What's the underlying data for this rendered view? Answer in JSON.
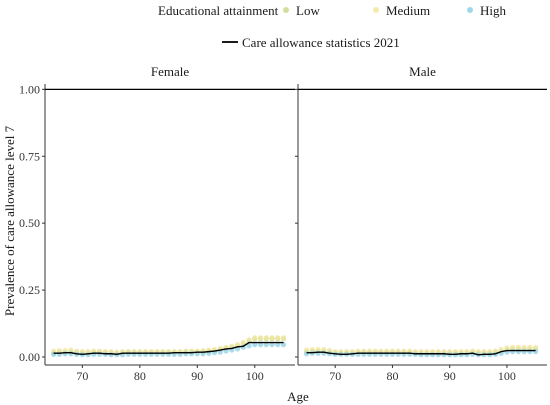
{
  "chart_data": {
    "type": "scatter",
    "legend": {
      "title": "Educational attainment",
      "items": [
        {
          "label": "Low",
          "color": "#c8d98a"
        },
        {
          "label": "Medium",
          "color": "#f2e6a0"
        },
        {
          "label": "High",
          "color": "#8ed0e6"
        }
      ],
      "line_label": "Care allowance statistics 2021",
      "line_color": "#000000",
      "placement": "top"
    },
    "xlabel": "Age",
    "ylabel": "Prevalence of care allowance level 7",
    "xlim": [
      63.5,
      107
    ],
    "ylim": [
      -0.03,
      1.02
    ],
    "xticks": [
      70,
      80,
      90,
      100
    ],
    "yticks": [
      0.0,
      0.25,
      0.5,
      0.75,
      1.0
    ],
    "ytick_labels": [
      "0.00",
      "0.25",
      "0.50",
      "0.75",
      "1.00"
    ],
    "grid": false,
    "panels": [
      {
        "label": "Female",
        "hline": 1.0,
        "series": [
          {
            "name": "Low",
            "x": [
              65,
              66,
              67,
              68,
              69,
              70,
              71,
              72,
              73,
              74,
              75,
              76,
              77,
              78,
              79,
              80,
              81,
              82,
              83,
              84,
              85,
              86,
              87,
              88,
              89,
              90,
              91,
              92,
              93,
              94,
              95,
              96,
              97,
              98,
              99,
              100,
              101,
              102,
              103,
              104,
              105
            ],
            "y": [
              0.016,
              0.018,
              0.018,
              0.02,
              0.018,
              0.016,
              0.016,
              0.018,
              0.018,
              0.018,
              0.016,
              0.014,
              0.016,
              0.018,
              0.018,
              0.018,
              0.018,
              0.018,
              0.018,
              0.018,
              0.018,
              0.018,
              0.018,
              0.02,
              0.02,
              0.02,
              0.02,
              0.022,
              0.024,
              0.028,
              0.032,
              0.036,
              0.042,
              0.05,
              0.06,
              0.068,
              0.068,
              0.068,
              0.068,
              0.068,
              0.068
            ]
          },
          {
            "name": "Medium",
            "x": [
              65,
              66,
              67,
              68,
              69,
              70,
              71,
              72,
              73,
              74,
              75,
              76,
              77,
              78,
              79,
              80,
              81,
              82,
              83,
              84,
              85,
              86,
              87,
              88,
              89,
              90,
              91,
              92,
              93,
              94,
              95,
              96,
              97,
              98,
              99,
              100,
              101,
              102,
              103,
              104,
              105
            ],
            "y": [
              0.022,
              0.024,
              0.024,
              0.026,
              0.022,
              0.02,
              0.02,
              0.022,
              0.022,
              0.02,
              0.02,
              0.018,
              0.02,
              0.02,
              0.02,
              0.02,
              0.02,
              0.02,
              0.02,
              0.02,
              0.02,
              0.02,
              0.02,
              0.022,
              0.022,
              0.022,
              0.024,
              0.026,
              0.028,
              0.032,
              0.036,
              0.04,
              0.046,
              0.054,
              0.064,
              0.072,
              0.072,
              0.072,
              0.072,
              0.072,
              0.072
            ]
          },
          {
            "name": "High",
            "x": [
              65,
              66,
              67,
              68,
              69,
              70,
              71,
              72,
              73,
              74,
              75,
              76,
              77,
              78,
              79,
              80,
              81,
              82,
              83,
              84,
              85,
              86,
              87,
              88,
              89,
              90,
              91,
              92,
              93,
              94,
              95,
              96,
              97,
              98,
              99,
              100,
              101,
              102,
              103,
              104,
              105
            ],
            "y": [
              0.01,
              0.01,
              0.012,
              0.012,
              0.01,
              0.008,
              0.008,
              0.01,
              0.01,
              0.01,
              0.008,
              0.008,
              0.008,
              0.01,
              0.01,
              0.01,
              0.01,
              0.01,
              0.01,
              0.01,
              0.01,
              0.01,
              0.01,
              0.012,
              0.012,
              0.012,
              0.012,
              0.014,
              0.016,
              0.018,
              0.022,
              0.026,
              0.03,
              0.036,
              0.042,
              0.046,
              0.046,
              0.046,
              0.046,
              0.046,
              0.046
            ]
          }
        ],
        "stats": {
          "x": [
            65,
            66,
            67,
            68,
            69,
            70,
            71,
            72,
            73,
            74,
            75,
            76,
            77,
            78,
            79,
            80,
            81,
            82,
            83,
            84,
            85,
            86,
            87,
            88,
            89,
            90,
            91,
            92,
            93,
            94,
            95,
            96,
            97,
            98,
            99,
            100,
            101,
            102,
            103,
            104,
            105
          ],
          "y": [
            0.014,
            0.014,
            0.016,
            0.016,
            0.012,
            0.01,
            0.012,
            0.014,
            0.014,
            0.012,
            0.012,
            0.01,
            0.014,
            0.014,
            0.014,
            0.014,
            0.014,
            0.014,
            0.014,
            0.014,
            0.014,
            0.016,
            0.016,
            0.016,
            0.016,
            0.018,
            0.018,
            0.02,
            0.022,
            0.026,
            0.03,
            0.032,
            0.038,
            0.04,
            0.054,
            0.054,
            0.054,
            0.054,
            0.054,
            0.054,
            0.054
          ]
        }
      },
      {
        "label": "Male",
        "hline": 1.0,
        "series": [
          {
            "name": "Low",
            "x": [
              65,
              66,
              67,
              68,
              69,
              70,
              71,
              72,
              73,
              74,
              75,
              76,
              77,
              78,
              79,
              80,
              81,
              82,
              83,
              84,
              85,
              86,
              87,
              88,
              89,
              90,
              91,
              92,
              93,
              94,
              95,
              96,
              97,
              98,
              99,
              100,
              101,
              102,
              103,
              104,
              105
            ],
            "y": [
              0.02,
              0.022,
              0.022,
              0.022,
              0.02,
              0.016,
              0.016,
              0.016,
              0.016,
              0.018,
              0.018,
              0.018,
              0.018,
              0.018,
              0.018,
              0.018,
              0.018,
              0.018,
              0.018,
              0.016,
              0.016,
              0.016,
              0.016,
              0.016,
              0.016,
              0.016,
              0.016,
              0.016,
              0.016,
              0.018,
              0.016,
              0.016,
              0.016,
              0.018,
              0.022,
              0.028,
              0.03,
              0.03,
              0.03,
              0.03,
              0.03
            ]
          },
          {
            "name": "Medium",
            "x": [
              65,
              66,
              67,
              68,
              69,
              70,
              71,
              72,
              73,
              74,
              75,
              76,
              77,
              78,
              79,
              80,
              81,
              82,
              83,
              84,
              85,
              86,
              87,
              88,
              89,
              90,
              91,
              92,
              93,
              94,
              95,
              96,
              97,
              98,
              99,
              100,
              101,
              102,
              103,
              104,
              105
            ],
            "y": [
              0.026,
              0.028,
              0.028,
              0.028,
              0.024,
              0.02,
              0.02,
              0.02,
              0.02,
              0.022,
              0.022,
              0.022,
              0.022,
              0.022,
              0.022,
              0.022,
              0.022,
              0.022,
              0.022,
              0.02,
              0.02,
              0.02,
              0.02,
              0.02,
              0.02,
              0.02,
              0.02,
              0.02,
              0.02,
              0.022,
              0.02,
              0.02,
              0.02,
              0.022,
              0.028,
              0.034,
              0.036,
              0.036,
              0.036,
              0.036,
              0.036
            ]
          },
          {
            "name": "High",
            "x": [
              65,
              66,
              67,
              68,
              69,
              70,
              71,
              72,
              73,
              74,
              75,
              76,
              77,
              78,
              79,
              80,
              81,
              82,
              83,
              84,
              85,
              86,
              87,
              88,
              89,
              90,
              91,
              92,
              93,
              94,
              95,
              96,
              97,
              98,
              99,
              100,
              101,
              102,
              103,
              104,
              105
            ],
            "y": [
              0.012,
              0.014,
              0.014,
              0.014,
              0.012,
              0.01,
              0.01,
              0.01,
              0.01,
              0.01,
              0.01,
              0.01,
              0.01,
              0.01,
              0.01,
              0.01,
              0.01,
              0.01,
              0.01,
              0.01,
              0.008,
              0.008,
              0.008,
              0.008,
              0.008,
              0.008,
              0.008,
              0.008,
              0.008,
              0.01,
              0.008,
              0.008,
              0.008,
              0.01,
              0.014,
              0.018,
              0.02,
              0.02,
              0.02,
              0.02,
              0.02
            ]
          }
        ],
        "stats": {
          "x": [
            65,
            66,
            67,
            68,
            69,
            70,
            71,
            72,
            73,
            74,
            75,
            76,
            77,
            78,
            79,
            80,
            81,
            82,
            83,
            84,
            85,
            86,
            87,
            88,
            89,
            90,
            91,
            92,
            93,
            94,
            95,
            96,
            97,
            98,
            99,
            100,
            101,
            102,
            103,
            104,
            105
          ],
          "y": [
            0.016,
            0.016,
            0.018,
            0.018,
            0.014,
            0.012,
            0.01,
            0.01,
            0.012,
            0.014,
            0.014,
            0.014,
            0.014,
            0.014,
            0.014,
            0.014,
            0.014,
            0.014,
            0.014,
            0.012,
            0.012,
            0.012,
            0.012,
            0.012,
            0.012,
            0.01,
            0.01,
            0.012,
            0.012,
            0.014,
            0.008,
            0.01,
            0.01,
            0.012,
            0.02,
            0.024,
            0.024,
            0.024,
            0.024,
            0.024,
            0.024
          ]
        }
      }
    ]
  }
}
